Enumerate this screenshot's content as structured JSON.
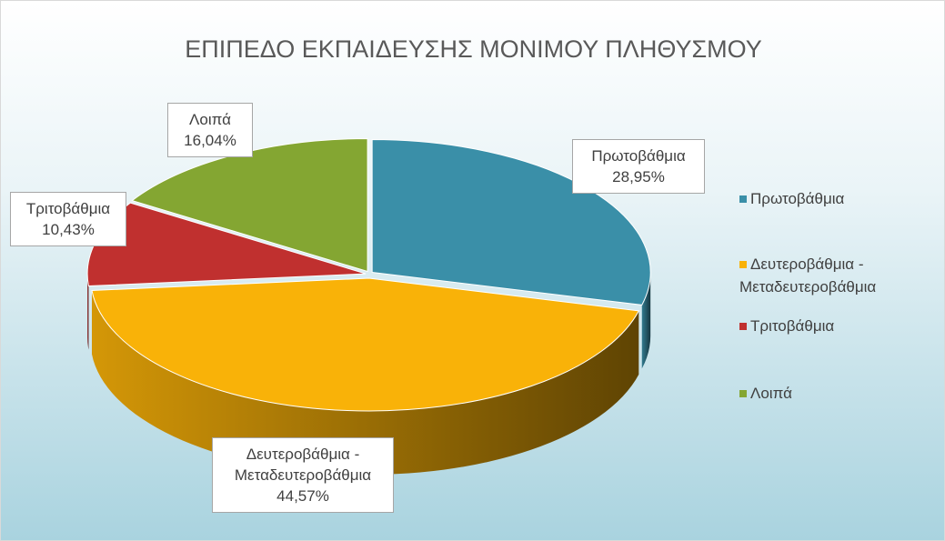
{
  "chart_data": {
    "type": "pie",
    "title": "ΕΠΙΠΕΔΟ ΕΚΠΑΙΔΕΥΣΗΣ ΜΟΝΙΜΟΥ ΠΛΗΘΥΣΜΟΥ",
    "categories": [
      "Πρωτοβάθμια",
      "Δευτεροβάθμια - Μεταδευτεροβάθμια",
      "Τριτοβάθμια",
      "Λοιπά"
    ],
    "values": [
      28.95,
      44.57,
      10.43,
      16.04
    ],
    "value_labels": [
      "28,95%",
      "44,57%",
      "10,43%",
      "16,04%"
    ],
    "colors": [
      "#3a8fa8",
      "#f9b208",
      "#c0302f",
      "#84a632"
    ],
    "legend": "right"
  }
}
